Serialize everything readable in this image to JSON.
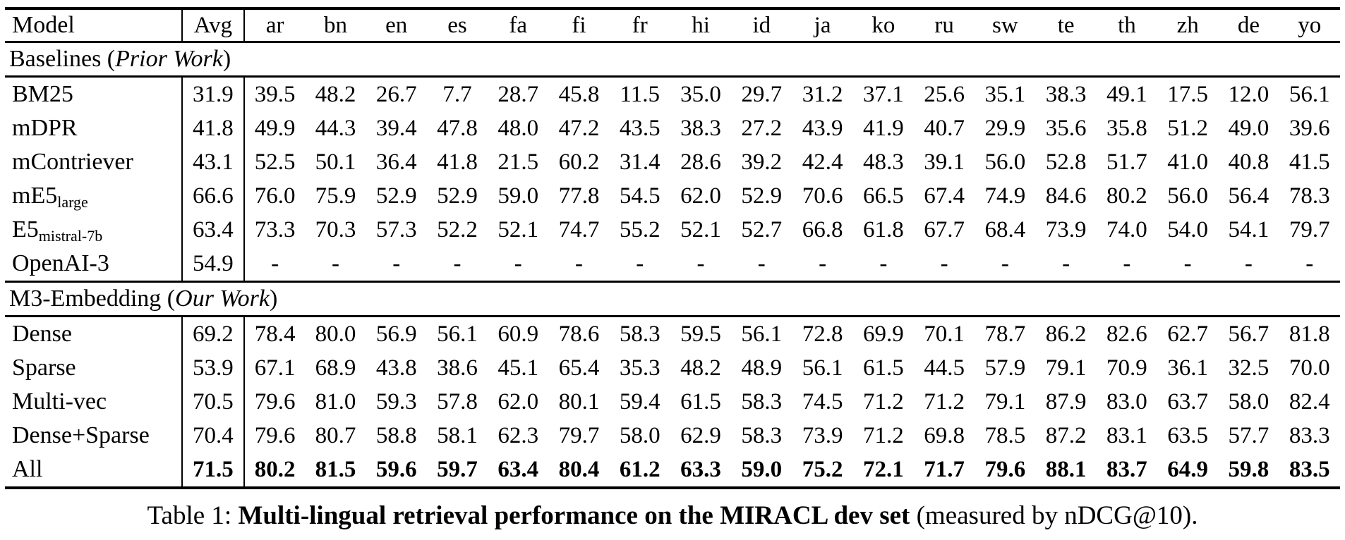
{
  "table": {
    "columns": [
      "Model",
      "Avg",
      "ar",
      "bn",
      "en",
      "es",
      "fa",
      "fi",
      "fr",
      "hi",
      "id",
      "ja",
      "ko",
      "ru",
      "sw",
      "te",
      "th",
      "zh",
      "de",
      "yo"
    ],
    "sections": [
      {
        "header": {
          "pre": "Baselines (",
          "italic": "Prior Work",
          "post": ")"
        },
        "rows": [
          {
            "model": "BM25",
            "sub": "",
            "bold_values": false,
            "values": [
              "31.9",
              "39.5",
              "48.2",
              "26.7",
              "7.7",
              "28.7",
              "45.8",
              "11.5",
              "35.0",
              "29.7",
              "31.2",
              "37.1",
              "25.6",
              "35.1",
              "38.3",
              "49.1",
              "17.5",
              "12.0",
              "56.1"
            ]
          },
          {
            "model": "mDPR",
            "sub": "",
            "bold_values": false,
            "values": [
              "41.8",
              "49.9",
              "44.3",
              "39.4",
              "47.8",
              "48.0",
              "47.2",
              "43.5",
              "38.3",
              "27.2",
              "43.9",
              "41.9",
              "40.7",
              "29.9",
              "35.6",
              "35.8",
              "51.2",
              "49.0",
              "39.6"
            ]
          },
          {
            "model": "mContriever",
            "sub": "",
            "bold_values": false,
            "values": [
              "43.1",
              "52.5",
              "50.1",
              "36.4",
              "41.8",
              "21.5",
              "60.2",
              "31.4",
              "28.6",
              "39.2",
              "42.4",
              "48.3",
              "39.1",
              "56.0",
              "52.8",
              "51.7",
              "41.0",
              "40.8",
              "41.5"
            ]
          },
          {
            "model": "mE5",
            "sub": "large",
            "bold_values": false,
            "values": [
              "66.6",
              "76.0",
              "75.9",
              "52.9",
              "52.9",
              "59.0",
              "77.8",
              "54.5",
              "62.0",
              "52.9",
              "70.6",
              "66.5",
              "67.4",
              "74.9",
              "84.6",
              "80.2",
              "56.0",
              "56.4",
              "78.3"
            ]
          },
          {
            "model": "E5",
            "sub": "mistral-7b",
            "bold_values": false,
            "values": [
              "63.4",
              "73.3",
              "70.3",
              "57.3",
              "52.2",
              "52.1",
              "74.7",
              "55.2",
              "52.1",
              "52.7",
              "66.8",
              "61.8",
              "67.7",
              "68.4",
              "73.9",
              "74.0",
              "54.0",
              "54.1",
              "79.7"
            ]
          },
          {
            "model": "OpenAI-3",
            "sub": "",
            "bold_values": false,
            "values": [
              "54.9",
              "-",
              "-",
              "-",
              "-",
              "-",
              "-",
              "-",
              "-",
              "-",
              "-",
              "-",
              "-",
              "-",
              "-",
              "-",
              "-",
              "-",
              "-"
            ]
          }
        ]
      },
      {
        "header": {
          "pre": "M3-Embedding (",
          "italic": "Our Work",
          "post": ")"
        },
        "rows": [
          {
            "model": "Dense",
            "sub": "",
            "bold_values": false,
            "values": [
              "69.2",
              "78.4",
              "80.0",
              "56.9",
              "56.1",
              "60.9",
              "78.6",
              "58.3",
              "59.5",
              "56.1",
              "72.8",
              "69.9",
              "70.1",
              "78.7",
              "86.2",
              "82.6",
              "62.7",
              "56.7",
              "81.8"
            ]
          },
          {
            "model": "Sparse",
            "sub": "",
            "bold_values": false,
            "values": [
              "53.9",
              "67.1",
              "68.9",
              "43.8",
              "38.6",
              "45.1",
              "65.4",
              "35.3",
              "48.2",
              "48.9",
              "56.1",
              "61.5",
              "44.5",
              "57.9",
              "79.1",
              "70.9",
              "36.1",
              "32.5",
              "70.0"
            ]
          },
          {
            "model": "Multi-vec",
            "sub": "",
            "bold_values": false,
            "values": [
              "70.5",
              "79.6",
              "81.0",
              "59.3",
              "57.8",
              "62.0",
              "80.1",
              "59.4",
              "61.5",
              "58.3",
              "74.5",
              "71.2",
              "71.2",
              "79.1",
              "87.9",
              "83.0",
              "63.7",
              "58.0",
              "82.4"
            ]
          },
          {
            "model": "Dense+Sparse",
            "sub": "",
            "bold_values": false,
            "values": [
              "70.4",
              "79.6",
              "80.7",
              "58.8",
              "58.1",
              "62.3",
              "79.7",
              "58.0",
              "62.9",
              "58.3",
              "73.9",
              "71.2",
              "69.8",
              "78.5",
              "87.2",
              "83.1",
              "63.5",
              "57.7",
              "83.3"
            ]
          },
          {
            "model": "All",
            "sub": "",
            "bold_values": true,
            "values": [
              "71.5",
              "80.2",
              "81.5",
              "59.6",
              "59.7",
              "63.4",
              "80.4",
              "61.2",
              "63.3",
              "59.0",
              "75.2",
              "72.1",
              "71.7",
              "79.6",
              "88.1",
              "83.7",
              "64.9",
              "59.8",
              "83.5"
            ]
          }
        ]
      }
    ]
  },
  "caption": {
    "prefix": "Table 1: ",
    "bold": "Multi-lingual retrieval performance on the MIRACL dev set",
    "suffix": " (measured by nDCG@10)."
  }
}
